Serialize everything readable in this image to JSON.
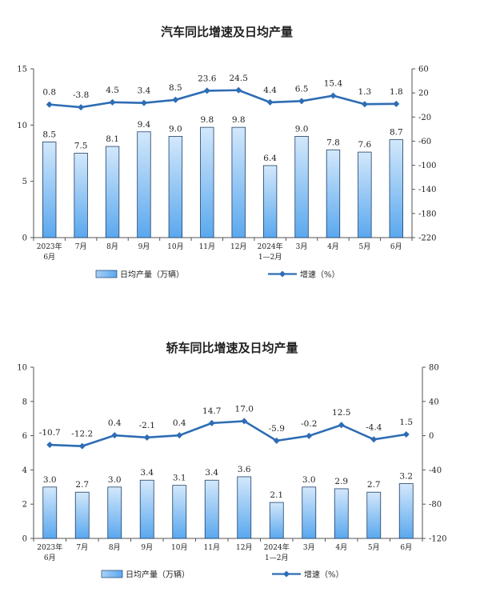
{
  "chart_data": [
    {
      "type": "bar",
      "title": "汽车同比增速及日均产量",
      "categories": [
        [
          "2023年",
          "6月"
        ],
        [
          "7月"
        ],
        [
          "8月"
        ],
        [
          "9月"
        ],
        [
          "10月"
        ],
        [
          "11月"
        ],
        [
          "12月"
        ],
        [
          "2024年",
          "1—2月"
        ],
        [
          "3月"
        ],
        [
          "4月"
        ],
        [
          "5月"
        ],
        [
          "6月"
        ]
      ],
      "series": [
        {
          "name": "日均产量（万辆）",
          "type": "bar",
          "axis": "left",
          "values": [
            8.5,
            7.5,
            8.1,
            9.4,
            9.0,
            9.8,
            9.8,
            6.4,
            9.0,
            7.8,
            7.6,
            8.7
          ]
        },
        {
          "name": "增速（%）",
          "type": "line",
          "axis": "right",
          "values": [
            0.8,
            -3.8,
            4.5,
            3.4,
            8.5,
            23.6,
            24.5,
            4.4,
            6.5,
            15.4,
            1.3,
            1.8
          ]
        }
      ],
      "left_axis": {
        "min": 0,
        "max": 15,
        "ticks": [
          0,
          5,
          10,
          15
        ]
      },
      "right_axis": {
        "min": -220,
        "max": 60,
        "ticks": [
          60,
          20,
          -20,
          -60,
          -100,
          -140,
          -180,
          -220
        ]
      },
      "legend": [
        "日均产量（万辆）",
        "增速（%）"
      ]
    },
    {
      "type": "bar",
      "title": "轿车同比增速及日均产量",
      "categories": [
        [
          "2023年",
          "6月"
        ],
        [
          "7月"
        ],
        [
          "8月"
        ],
        [
          "9月"
        ],
        [
          "10月"
        ],
        [
          "11月"
        ],
        [
          "12月"
        ],
        [
          "2024年",
          "1—2月"
        ],
        [
          "3月"
        ],
        [
          "4月"
        ],
        [
          "5月"
        ],
        [
          "6月"
        ]
      ],
      "series": [
        {
          "name": "日均产量（万辆）",
          "type": "bar",
          "axis": "left",
          "values": [
            3.0,
            2.7,
            3.0,
            3.4,
            3.1,
            3.4,
            3.6,
            2.1,
            3.0,
            2.9,
            2.7,
            3.2
          ]
        },
        {
          "name": "增速（%）",
          "type": "line",
          "axis": "right",
          "values": [
            -10.7,
            -12.2,
            0.4,
            -2.1,
            0.4,
            14.7,
            17.0,
            -5.9,
            -0.2,
            12.5,
            -4.4,
            1.5
          ]
        }
      ],
      "left_axis": {
        "min": 0,
        "max": 10,
        "ticks": [
          0,
          2,
          4,
          6,
          8,
          10
        ]
      },
      "right_axis": {
        "min": -120,
        "max": 80,
        "ticks": [
          80,
          40,
          0,
          -40,
          -80,
          -120
        ]
      },
      "legend": [
        "日均产量（万辆）",
        "增速（%）"
      ]
    }
  ],
  "colors": {
    "bar_fill_top": "#d3e8fb",
    "bar_fill_bottom": "#5aa8ee",
    "bar_stroke": "#1f3f68",
    "line": "#2e6db4",
    "axis": "#555555"
  }
}
